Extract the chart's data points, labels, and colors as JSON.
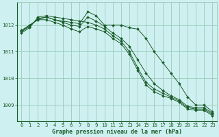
{
  "hours": [
    0,
    1,
    2,
    3,
    4,
    5,
    6,
    7,
    8,
    9,
    10,
    11,
    12,
    13,
    14,
    15,
    16,
    17,
    18,
    19,
    20,
    21,
    22,
    23
  ],
  "line1": [
    1011.8,
    1012.0,
    1012.2,
    1012.3,
    1012.2,
    1012.15,
    1012.1,
    1012.05,
    1012.5,
    1012.35,
    1012.0,
    1012.0,
    1012.0,
    1011.9,
    1011.85,
    1011.5,
    1011.0,
    1010.6,
    1010.2,
    1009.8,
    1009.3,
    1009.0,
    1009.0,
    1008.75
  ],
  "line2": [
    1011.75,
    1011.95,
    1012.25,
    1012.3,
    1012.2,
    1012.1,
    1012.0,
    1011.95,
    1012.3,
    1012.15,
    1011.95,
    1011.7,
    1011.5,
    1011.2,
    1010.7,
    1010.2,
    1009.8,
    1009.55,
    1009.35,
    1009.2,
    1008.95,
    1008.9,
    1008.9,
    1008.7
  ],
  "line3": [
    1011.7,
    1011.9,
    1012.3,
    1012.35,
    1012.3,
    1012.25,
    1012.2,
    1012.15,
    1012.1,
    1012.0,
    1011.85,
    1011.6,
    1011.4,
    1011.0,
    1010.4,
    1009.85,
    1009.6,
    1009.45,
    1009.3,
    1009.15,
    1008.9,
    1008.85,
    1008.85,
    1008.65
  ],
  "line4": [
    1011.75,
    1012.0,
    1012.2,
    1012.2,
    1012.1,
    1012.0,
    1011.85,
    1011.75,
    1011.95,
    1011.85,
    1011.75,
    1011.5,
    1011.3,
    1010.9,
    1010.3,
    1009.75,
    1009.5,
    1009.35,
    1009.25,
    1009.1,
    1008.85,
    1008.8,
    1008.8,
    1008.6
  ],
  "bg_color": "#cff0f0",
  "grid_color": "#99ccbb",
  "line_color": "#1a5c2a",
  "marker": "D",
  "marker_size": 2.0,
  "xlabel": "Graphe pression niveau de la mer (hPa)",
  "ylim": [
    1008.4,
    1012.85
  ],
  "yticks": [
    1009,
    1010,
    1011,
    1012
  ],
  "xticks": [
    0,
    1,
    2,
    3,
    4,
    5,
    6,
    7,
    8,
    9,
    10,
    11,
    12,
    13,
    14,
    15,
    16,
    17,
    18,
    19,
    20,
    21,
    22,
    23
  ],
  "tick_fontsize": 5.2,
  "xlabel_fontsize": 6.0
}
